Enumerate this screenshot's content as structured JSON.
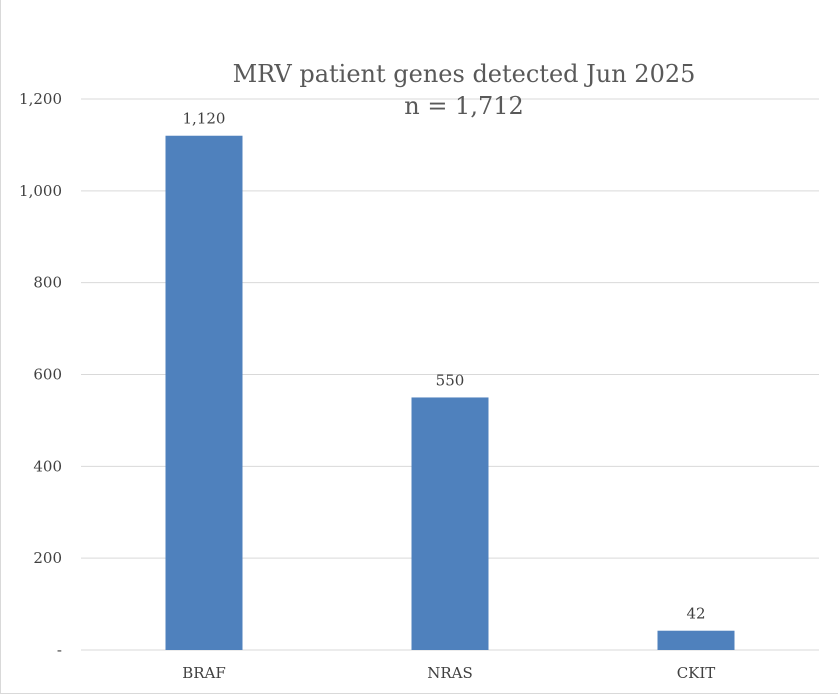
{
  "chart_data": {
    "type": "bar",
    "title": "MRV patient genes detected Jun 2025",
    "subtitle": "n = 1,712",
    "categories": [
      "BRAF",
      "NRAS",
      "CKIT"
    ],
    "values": [
      1120,
      550,
      42
    ],
    "data_labels": [
      "1,120",
      "550",
      "42"
    ],
    "ylim": [
      0,
      1200
    ],
    "yticks": [
      0,
      200,
      400,
      600,
      800,
      1000,
      1200
    ],
    "ytick_labels": [
      "-",
      "200",
      "400",
      "600",
      "800",
      "1,000",
      "1,200"
    ],
    "xlabel": "",
    "ylabel": "",
    "grid": true,
    "legend": "none",
    "bar_color": "#4f81bd",
    "gridline_color": "#d9d9d9"
  }
}
